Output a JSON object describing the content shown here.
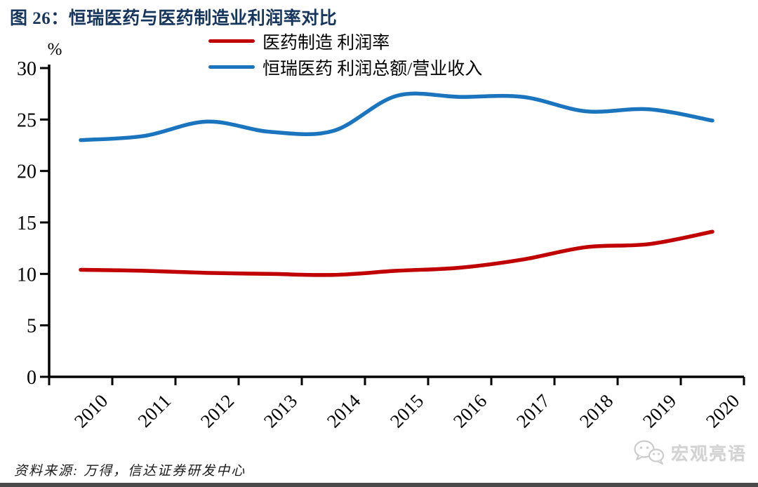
{
  "title": "图 26：恒瑞医药与医药制造业利润率对比",
  "source_note": "资料来源: 万得，信达证券研发中心",
  "watermark": {
    "icon": "wechat-icon",
    "text": "宏观亮语"
  },
  "colors": {
    "title": "#17365D",
    "axis": "#000000",
    "red_series": "#C00000",
    "blue_series": "#1B74BE",
    "watermark": "#D2D2D2",
    "bottom_bar": "#4A4A4A"
  },
  "chart_data": {
    "type": "line",
    "categories": [
      "2010",
      "2011",
      "2012",
      "2013",
      "2014",
      "2015",
      "2016",
      "2017",
      "2018",
      "2019",
      "2020"
    ],
    "series": [
      {
        "name": "医药制造 利润率",
        "color": "#C00000",
        "values": [
          10.4,
          10.3,
          10.1,
          10.0,
          9.9,
          10.3,
          10.6,
          11.4,
          12.6,
          12.9,
          14.1
        ]
      },
      {
        "name": "恒瑞医药 利润总额/营业收入",
        "color": "#1B74BE",
        "values": [
          23.0,
          23.4,
          24.8,
          23.8,
          23.9,
          27.3,
          27.2,
          27.2,
          25.8,
          26.0,
          24.9
        ]
      }
    ],
    "title": "恒瑞医药与医药制造业利润率对比",
    "xlabel": "",
    "ylabel": "%",
    "ylim": [
      0,
      30
    ],
    "ytick_step": 5,
    "x_label_rotation_deg": -45,
    "grid": false,
    "legend_position": "top-center"
  }
}
